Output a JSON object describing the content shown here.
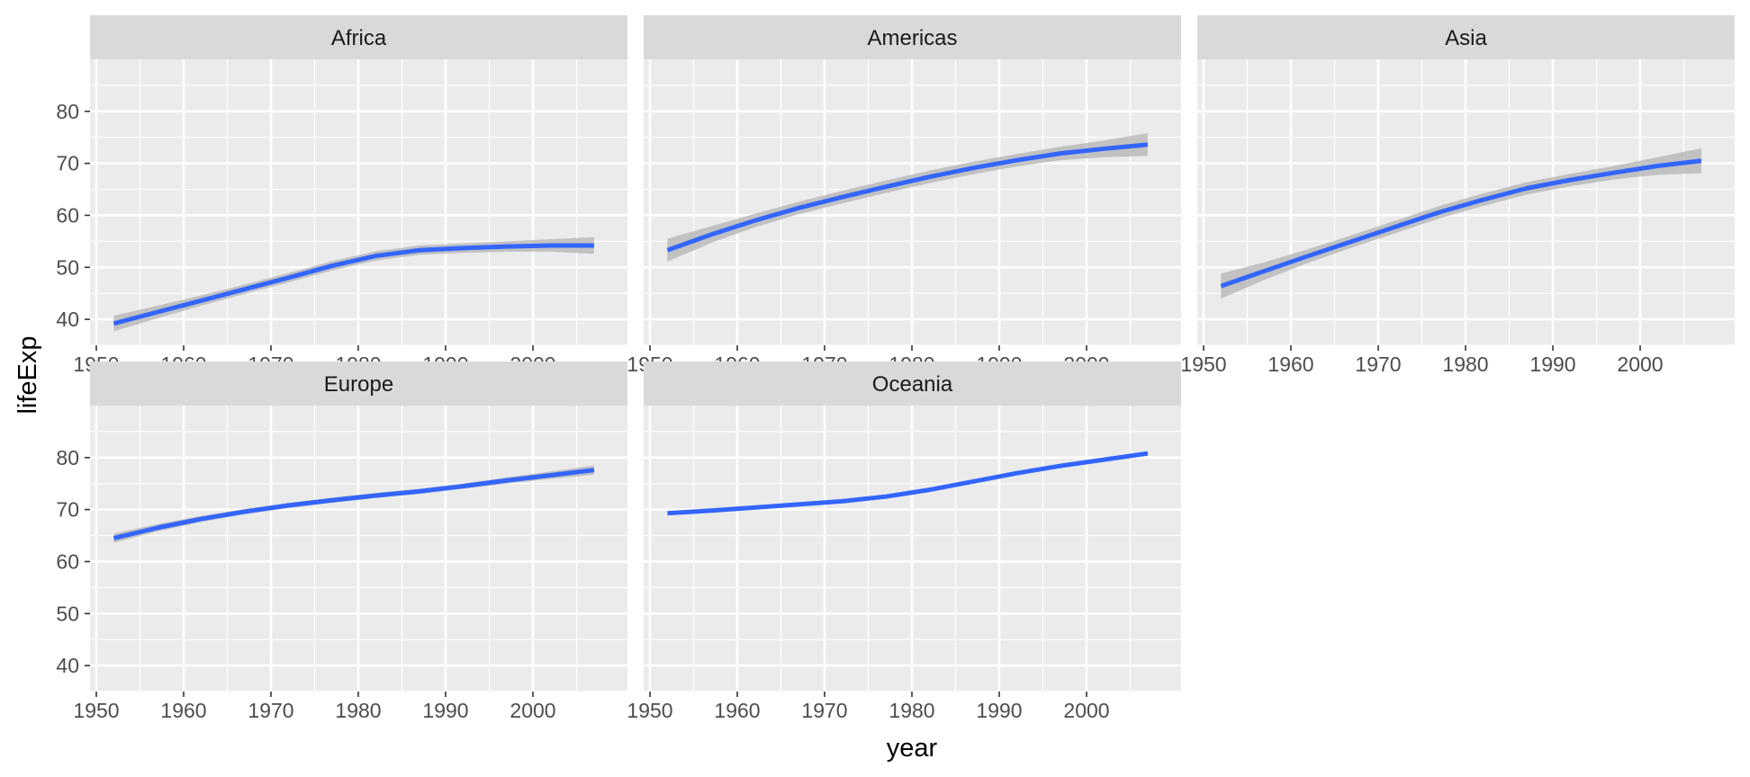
{
  "chart_data": {
    "type": "line",
    "facet_layout": "2 rows x 3 columns, free x-axis per panel, shared y-axis",
    "xlabel": "year",
    "ylabel": "lifeExp",
    "xlim": [
      1950,
      2010
    ],
    "ylim": [
      35,
      90
    ],
    "x_ticks": [
      1950,
      1960,
      1970,
      1980,
      1990,
      2000
    ],
    "y_ticks": [
      40,
      50,
      60,
      70,
      80
    ],
    "grid": true,
    "colors": {
      "line": "#3366FF",
      "ribbon": "#B3B3B3",
      "panel_bg": "#EBEBEB",
      "strip_bg": "#D9D9D9",
      "grid": "#FFFFFF"
    },
    "facets": [
      {
        "name": "Africa",
        "x": [
          1952,
          1957,
          1962,
          1967,
          1972,
          1977,
          1982,
          1987,
          1992,
          1997,
          2002,
          2007
        ],
        "y": [
          39.2,
          41.4,
          43.6,
          45.8,
          48.0,
          50.3,
          52.2,
          53.3,
          53.7,
          54.0,
          54.2,
          54.2
        ],
        "band": [
          1.5,
          1.2,
          1.0,
          0.9,
          0.9,
          0.9,
          0.9,
          0.9,
          0.9,
          1.0,
          1.2,
          1.6
        ]
      },
      {
        "name": "Americas",
        "x": [
          1952,
          1957,
          1962,
          1967,
          1972,
          1977,
          1982,
          1987,
          1992,
          1997,
          2002,
          2007
        ],
        "y": [
          53.3,
          56.3,
          59.0,
          61.4,
          63.5,
          65.5,
          67.4,
          69.1,
          70.6,
          71.9,
          72.8,
          73.6
        ],
        "band": [
          2.2,
          1.6,
          1.3,
          1.2,
          1.2,
          1.2,
          1.2,
          1.2,
          1.2,
          1.3,
          1.6,
          2.2
        ]
      },
      {
        "name": "Asia",
        "x": [
          1952,
          1957,
          1962,
          1967,
          1972,
          1977,
          1982,
          1987,
          1992,
          1997,
          2002,
          2007
        ],
        "y": [
          46.4,
          49.3,
          52.2,
          55.0,
          57.8,
          60.6,
          63.0,
          65.2,
          66.8,
          68.2,
          69.5,
          70.5
        ],
        "band": [
          2.4,
          1.7,
          1.3,
          1.2,
          1.2,
          1.2,
          1.2,
          1.2,
          1.2,
          1.3,
          1.7,
          2.4
        ]
      },
      {
        "name": "Europe",
        "x": [
          1952,
          1957,
          1962,
          1967,
          1972,
          1977,
          1982,
          1987,
          1992,
          1997,
          2002,
          2007
        ],
        "y": [
          64.5,
          66.5,
          68.2,
          69.6,
          70.8,
          71.8,
          72.7,
          73.5,
          74.5,
          75.6,
          76.6,
          77.6
        ],
        "band": [
          0.9,
          0.7,
          0.6,
          0.5,
          0.5,
          0.5,
          0.5,
          0.5,
          0.5,
          0.6,
          0.7,
          0.9
        ]
      },
      {
        "name": "Oceania",
        "x": [
          1952,
          1957,
          1962,
          1967,
          1972,
          1977,
          1982,
          1987,
          1992,
          1997,
          2002,
          2007
        ],
        "y": [
          69.3,
          69.8,
          70.4,
          71.0,
          71.6,
          72.5,
          73.8,
          75.4,
          77.0,
          78.4,
          79.6,
          80.8
        ],
        "band": [
          0.3,
          0.3,
          0.3,
          0.3,
          0.3,
          0.3,
          0.3,
          0.3,
          0.3,
          0.3,
          0.3,
          0.3
        ]
      }
    ]
  }
}
